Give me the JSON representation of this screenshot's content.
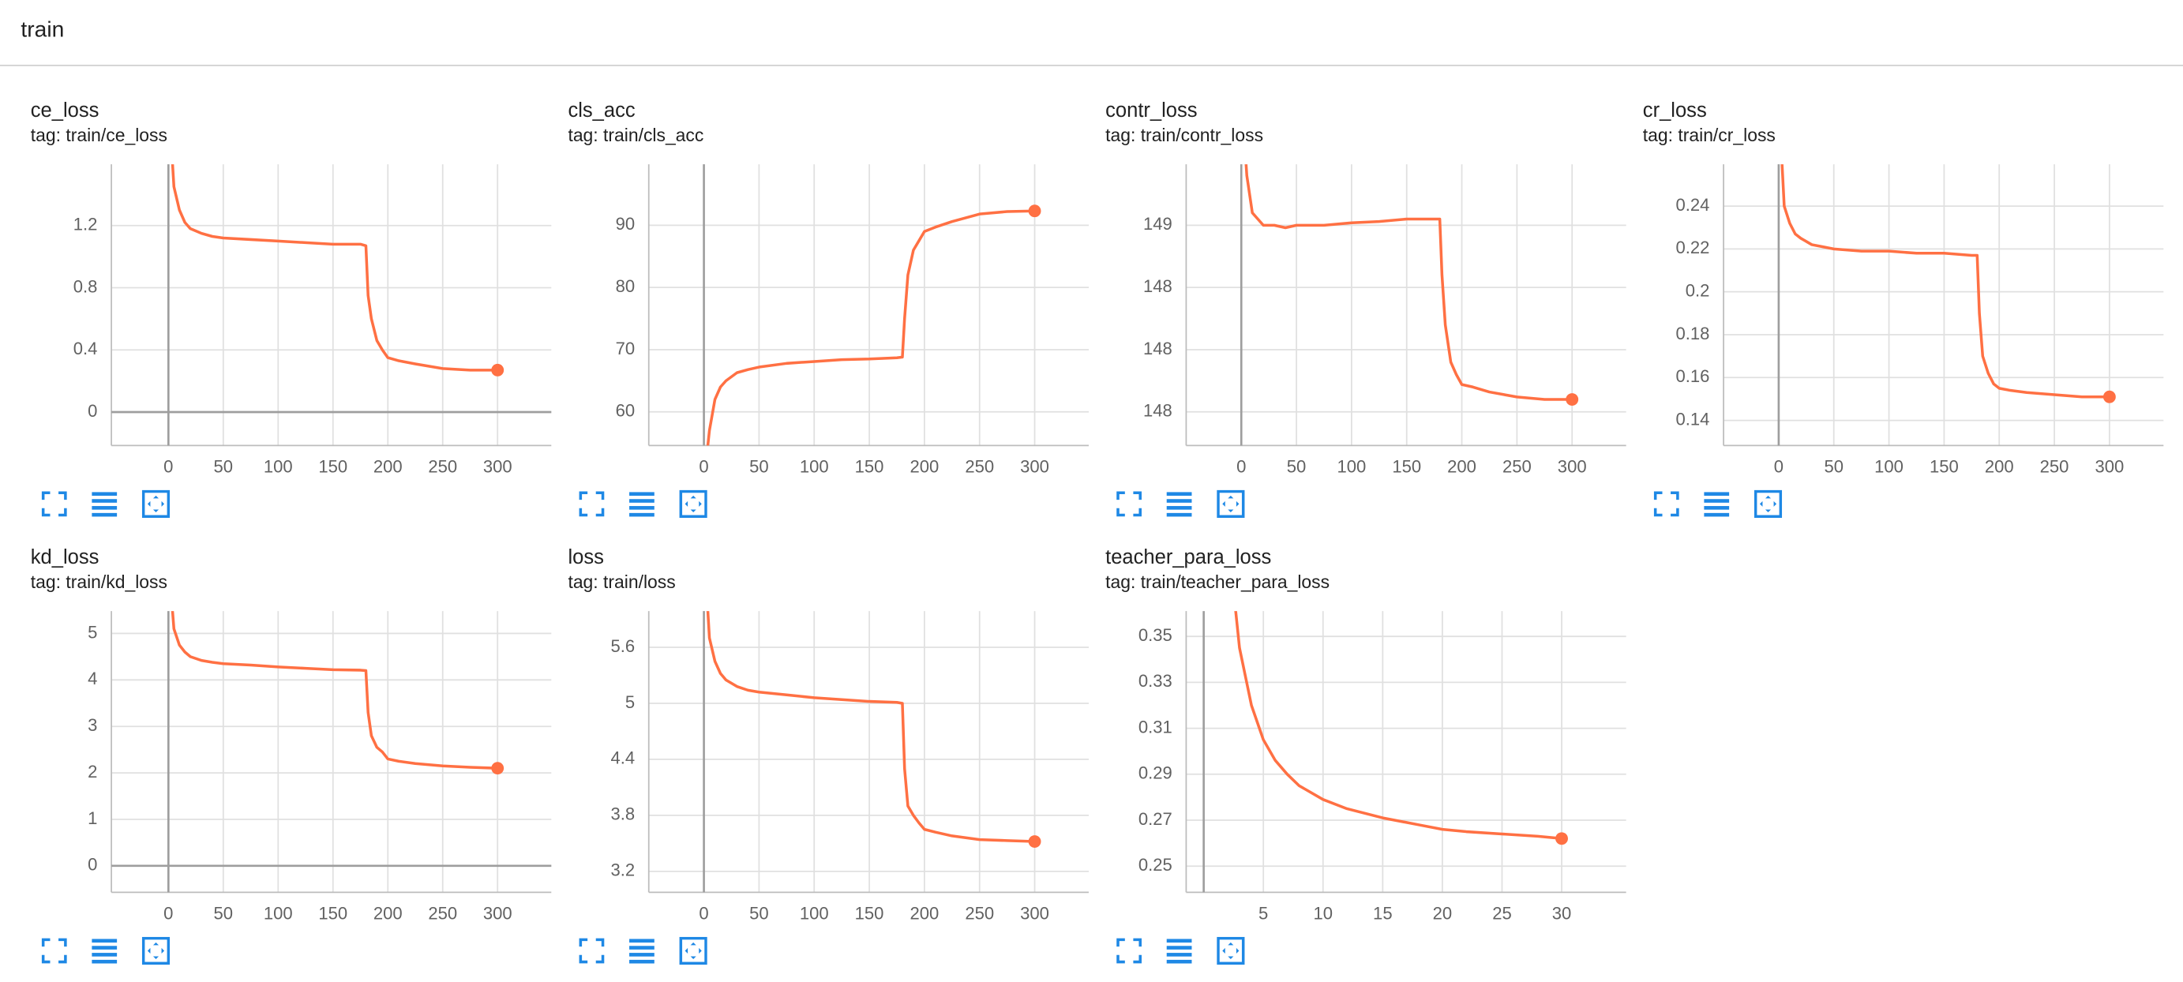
{
  "header": {
    "title": "train"
  },
  "chart_data": [
    {
      "type": "line",
      "title": "ce_loss",
      "subtitle": "tag: train/ce_loss",
      "color": "#ff7043",
      "grid": true,
      "x": [
        2,
        5,
        10,
        15,
        20,
        30,
        40,
        50,
        75,
        100,
        125,
        150,
        175,
        180,
        182,
        185,
        190,
        195,
        200,
        210,
        225,
        250,
        275,
        300
      ],
      "values": [
        1.8,
        1.45,
        1.3,
        1.22,
        1.18,
        1.15,
        1.13,
        1.12,
        1.11,
        1.1,
        1.09,
        1.08,
        1.08,
        1.07,
        0.75,
        0.6,
        0.46,
        0.4,
        0.35,
        0.33,
        0.31,
        0.28,
        0.27,
        0.27
      ],
      "xlim": [
        -52,
        349
      ],
      "ylim": [
        -0.215,
        1.594
      ],
      "xticks": [
        0,
        50,
        100,
        150,
        200,
        250,
        300
      ],
      "yticks": [
        0,
        0.4,
        0.8,
        1.2
      ]
    },
    {
      "type": "line",
      "title": "cls_acc",
      "subtitle": "tag: train/cls_acc",
      "color": "#ff7043",
      "grid": true,
      "x": [
        2,
        5,
        10,
        15,
        20,
        30,
        40,
        50,
        75,
        100,
        125,
        150,
        175,
        180,
        182,
        185,
        190,
        195,
        200,
        210,
        225,
        250,
        275,
        300
      ],
      "values": [
        52,
        57,
        62,
        64,
        65,
        66.3,
        66.8,
        67.2,
        67.8,
        68.1,
        68.4,
        68.5,
        68.7,
        68.8,
        75,
        82,
        86,
        87.5,
        89,
        89.7,
        90.6,
        91.8,
        92.2,
        92.3
      ],
      "xlim": [
        -50,
        349
      ],
      "ylim": [
        54.6,
        99.8
      ],
      "xticks": [
        0,
        50,
        100,
        150,
        200,
        250,
        300
      ],
      "yticks": [
        60,
        70,
        80,
        90
      ]
    },
    {
      "type": "line",
      "title": "contr_loss",
      "subtitle": "tag: train/contr_loss",
      "color": "#ff7043",
      "grid": true,
      "x": [
        2,
        5,
        10,
        15,
        20,
        30,
        40,
        50,
        75,
        100,
        125,
        150,
        175,
        180,
        182,
        185,
        190,
        195,
        200,
        210,
        225,
        250,
        275,
        300
      ],
      "values": [
        149.8,
        149.4,
        149.1,
        149.05,
        149.0,
        149.0,
        148.98,
        149.0,
        149.0,
        149.02,
        149.03,
        149.05,
        149.05,
        149.05,
        148.6,
        148.2,
        147.9,
        147.8,
        147.72,
        147.7,
        147.66,
        147.62,
        147.6,
        147.6
      ],
      "xlim": [
        -50,
        349
      ],
      "ylim": [
        147.23,
        149.49
      ],
      "xticks": [
        0,
        50,
        100,
        150,
        200,
        250,
        300
      ],
      "yticks": [
        {
          "value": 147.5,
          "label": "148"
        },
        148,
        {
          "value": 148.5,
          "label": "148"
        },
        149
      ]
    },
    {
      "type": "line",
      "title": "cr_loss",
      "subtitle": "tag: train/cr_loss",
      "color": "#ff7043",
      "grid": true,
      "x": [
        2,
        5,
        10,
        15,
        20,
        30,
        40,
        50,
        75,
        100,
        125,
        150,
        175,
        180,
        182,
        185,
        190,
        195,
        200,
        210,
        225,
        250,
        275,
        300
      ],
      "values": [
        0.27,
        0.24,
        0.232,
        0.227,
        0.225,
        0.222,
        0.221,
        0.22,
        0.219,
        0.219,
        0.218,
        0.218,
        0.217,
        0.217,
        0.19,
        0.17,
        0.162,
        0.157,
        0.155,
        0.154,
        0.153,
        0.152,
        0.151,
        0.151
      ],
      "xlim": [
        -50,
        349
      ],
      "ylim": [
        0.1283,
        0.2595
      ],
      "xticks": [
        0,
        50,
        100,
        150,
        200,
        250,
        300
      ],
      "yticks": [
        0.14,
        0.16,
        0.18,
        0.2,
        0.22,
        0.24
      ]
    },
    {
      "type": "line",
      "title": "kd_loss",
      "subtitle": "tag: train/kd_loss",
      "color": "#ff7043",
      "grid": true,
      "x": [
        2,
        5,
        10,
        15,
        20,
        30,
        40,
        50,
        75,
        100,
        125,
        150,
        175,
        180,
        182,
        185,
        190,
        195,
        200,
        210,
        225,
        250,
        275,
        300
      ],
      "values": [
        6,
        5.1,
        4.75,
        4.6,
        4.5,
        4.42,
        4.38,
        4.35,
        4.32,
        4.28,
        4.25,
        4.22,
        4.21,
        4.2,
        3.3,
        2.8,
        2.55,
        2.45,
        2.3,
        2.25,
        2.2,
        2.15,
        2.12,
        2.1
      ],
      "xlim": [
        -52,
        349
      ],
      "ylim": [
        -0.57,
        5.48
      ],
      "xticks": [
        0,
        50,
        100,
        150,
        200,
        250,
        300
      ],
      "yticks": [
        0,
        1,
        2,
        3,
        4,
        5
      ]
    },
    {
      "type": "line",
      "title": "loss",
      "subtitle": "tag: train/loss",
      "color": "#ff7043",
      "grid": true,
      "x": [
        2,
        5,
        10,
        15,
        20,
        30,
        40,
        50,
        75,
        100,
        125,
        150,
        175,
        180,
        182,
        185,
        190,
        195,
        200,
        210,
        225,
        250,
        275,
        300
      ],
      "values": [
        6.3,
        5.7,
        5.45,
        5.32,
        5.25,
        5.18,
        5.14,
        5.12,
        5.09,
        5.06,
        5.04,
        5.02,
        5.01,
        5.0,
        4.3,
        3.9,
        3.8,
        3.72,
        3.65,
        3.62,
        3.58,
        3.54,
        3.53,
        3.52
      ],
      "xlim": [
        -50,
        349
      ],
      "ylim": [
        2.976,
        5.987
      ],
      "xticks": [
        0,
        50,
        100,
        150,
        200,
        250,
        300
      ],
      "yticks": [
        3.2,
        3.8,
        4.4,
        5,
        5.6
      ]
    },
    {
      "type": "line",
      "title": "teacher_para_loss",
      "subtitle": "tag: train/teacher_para_loss",
      "color": "#ff7043",
      "grid": true,
      "x": [
        2.5,
        3,
        4,
        5,
        6,
        7,
        8,
        10,
        12,
        15,
        18,
        20,
        22,
        25,
        28,
        30
      ],
      "values": [
        0.37,
        0.345,
        0.32,
        0.305,
        0.296,
        0.29,
        0.285,
        0.279,
        0.275,
        0.271,
        0.268,
        0.266,
        0.265,
        0.264,
        0.263,
        0.262
      ],
      "xlim": [
        -1.47,
        35.4
      ],
      "ylim": [
        0.2386,
        0.361
      ],
      "xticks": [
        5,
        10,
        15,
        20,
        25,
        30
      ],
      "yticks": [
        0.25,
        0.27,
        0.29,
        0.31,
        0.33,
        0.35
      ]
    }
  ]
}
